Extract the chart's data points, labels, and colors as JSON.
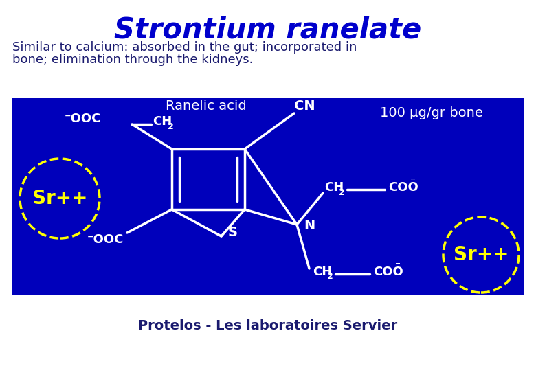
{
  "title": "Strontium ranelate",
  "subtitle_line1": "Similar to calcium: absorbed in the gut; incorporated in",
  "subtitle_line2": "bone; elimination through the kidneys.",
  "footer": "Protelos - Les laboratoires Servier",
  "title_color": "#0000CC",
  "subtitle_color": "#1a1a6e",
  "footer_color": "#1a1a6e",
  "box_bg": "#0000BB",
  "white": "#FFFFFF",
  "yellow": "#FFFF00",
  "fig_bg": "#FFFFFF",
  "ranelic_acid": "Ranelic acid",
  "bone_label": "100 μg/gr bone",
  "sr_label": "Sr++",
  "s_label": "S",
  "n_label": "N",
  "cn_label": "CN"
}
